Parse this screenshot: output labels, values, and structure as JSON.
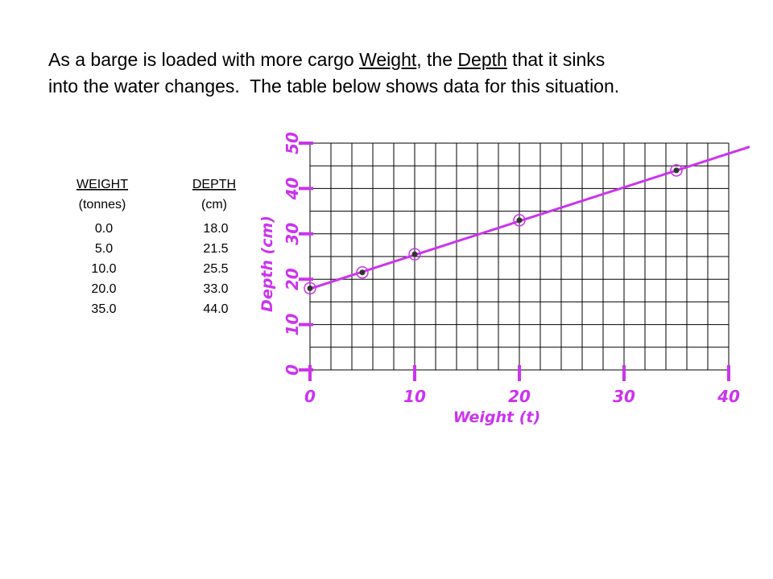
{
  "text": {
    "segments": [
      "As a barge is loaded with more cargo ",
      "Weight",
      ", the ",
      "Depth",
      " that it sinks",
      "into the water changes.  The table below shows data for this situation."
    ]
  },
  "table": {
    "headers": [
      [
        "WEIGHT",
        "(tonnes)"
      ],
      [
        "DEPTH",
        "(cm)"
      ]
    ],
    "rows": [
      [
        "0.0",
        "18.0"
      ],
      [
        "5.0",
        "21.5"
      ],
      [
        "10.0",
        "25.5"
      ],
      [
        "20.0",
        "33.0"
      ],
      [
        "35.0",
        "44.0"
      ]
    ]
  },
  "chart_data": {
    "type": "scatter",
    "x_label": "Weight (t)",
    "y_label": "Depth (cm)",
    "x": [
      0,
      5,
      10,
      20,
      35
    ],
    "values": [
      18,
      21.5,
      25.5,
      33,
      44
    ],
    "color": "#cc33ee",
    "trend_line": {
      "x": [
        0,
        42
      ],
      "values": [
        17.9,
        49.2
      ]
    },
    "xlim": [
      0,
      40
    ],
    "ylim": [
      0,
      50
    ],
    "xticks": [
      0,
      10,
      20,
      30,
      40
    ],
    "yticks": [
      0,
      10,
      20,
      30,
      40,
      50
    ],
    "grid": true,
    "x_grid_step": 2,
    "y_grid_step": 5
  }
}
